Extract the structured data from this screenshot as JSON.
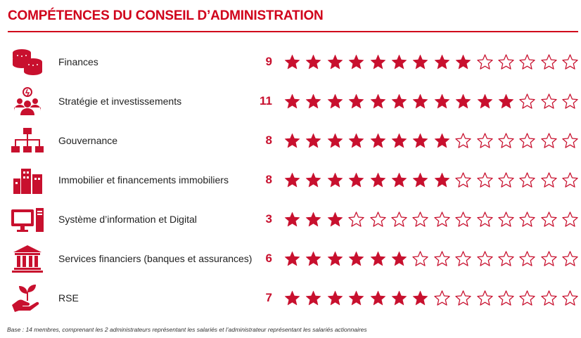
{
  "title": "COMPÉTENCES DU CONSEIL D’ADMINISTRATION",
  "footnote": "Base : 14 membres, comprenant les 2 administrateurs représentant les salariés et l’administrateur représentant les salariés actionnaires",
  "colors": {
    "accent": "#c8102e"
  },
  "chart_data": {
    "type": "bar",
    "title": "COMPÉTENCES DU CONSEIL D’ADMINISTRATION",
    "max": 14,
    "categories": [
      "Finances",
      "Stratégie et investissements",
      "Gouvernance",
      "Immobilier et financements immobiliers",
      "Système d’information et Digital",
      "Services financiers (banques et assurances)",
      "RSE"
    ],
    "values": [
      9,
      11,
      8,
      8,
      3,
      6,
      7
    ],
    "icons": [
      "coins-icon",
      "strategy-team-icon",
      "org-chart-icon",
      "buildings-icon",
      "computer-icon",
      "bank-icon",
      "plant-hand-icon"
    ],
    "labels": [
      "9",
      "11",
      "8",
      "8",
      "3",
      "6",
      "7"
    ]
  }
}
